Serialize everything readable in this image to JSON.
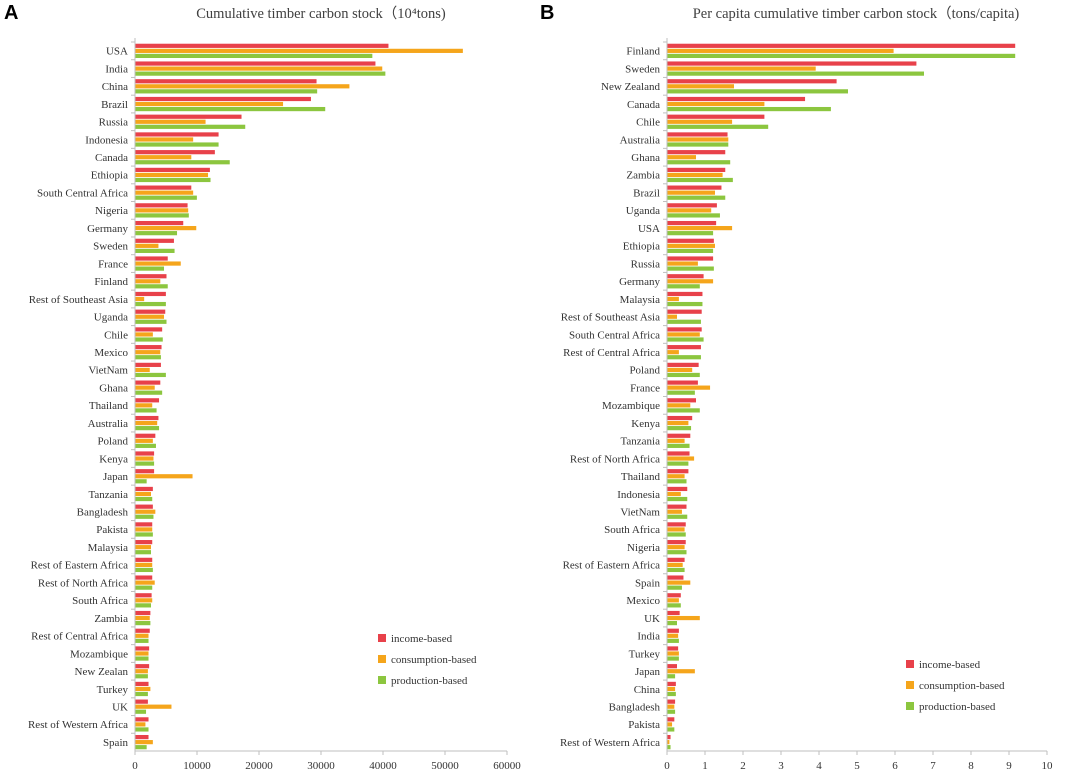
{
  "colors": {
    "income": "#E8414A",
    "consumption": "#F5A51B",
    "production": "#8CC63F",
    "axis": "#bfbfbf"
  },
  "chart_data": [
    {
      "type": "bar",
      "orientation": "horizontal",
      "panel": "A",
      "title": "Cumulative timber carbon stock（10⁴tons)",
      "xlim": [
        0,
        60000
      ],
      "xticks": [
        0,
        10000,
        20000,
        30000,
        40000,
        50000,
        60000
      ],
      "legend": [
        "income-based",
        "consumption-based",
        "production-based"
      ],
      "legend_position": "bottom-right",
      "categories": [
        "USA",
        "India",
        "China",
        "Brazil",
        "Russia",
        "Indonesia",
        "Canada",
        "Ethiopia",
        "South Central Africa",
        "Nigeria",
        "Germany",
        "Sweden",
        "France",
        "Finland",
        "Rest of Southeast Asia",
        "Uganda",
        "Chile",
        "Mexico",
        "VietNam",
        "Ghana",
        "Thailand",
        "Australia",
        "Poland",
        "Kenya",
        "Japan",
        "Tanzania",
        "Bangladesh",
        "Pakista",
        "Malaysia",
        "Rest of Eastern Africa",
        "Rest of North Africa",
        "South Africa",
        "Zambia",
        "Rest of Central Africa",
        "Mozambique",
        "New Zealan",
        "Turkey",
        "UK",
        "Rest of Western Africa",
        "Spain"
      ],
      "series": [
        {
          "name": "income-based",
          "values": [
            40800,
            38700,
            29200,
            28300,
            17100,
            13400,
            12800,
            12000,
            9000,
            8400,
            7700,
            6200,
            5200,
            5000,
            4900,
            4800,
            4300,
            4200,
            4100,
            4000,
            3800,
            3700,
            3200,
            3000,
            3000,
            2800,
            2800,
            2700,
            2700,
            2700,
            2700,
            2600,
            2400,
            2300,
            2200,
            2200,
            2100,
            2000,
            2100,
            2100
          ]
        },
        {
          "name": "consumption-based",
          "values": [
            52800,
            39800,
            34500,
            23800,
            11300,
            9300,
            9000,
            11700,
            9300,
            8500,
            9800,
            3700,
            7300,
            4000,
            1400,
            4600,
            2800,
            4000,
            2300,
            3100,
            2700,
            3500,
            2800,
            2900,
            9200,
            2500,
            3200,
            2700,
            2500,
            2700,
            3100,
            2700,
            2300,
            2100,
            2100,
            2000,
            2400,
            5800,
            1600,
            2800
          ]
        },
        {
          "name": "production-based",
          "values": [
            38200,
            40300,
            29300,
            30600,
            17700,
            13400,
            15200,
            12100,
            9900,
            8600,
            6700,
            6300,
            4600,
            5200,
            4900,
            5000,
            4400,
            4100,
            4900,
            4300,
            3400,
            3800,
            3300,
            3000,
            1800,
            2700,
            2900,
            2800,
            2500,
            2800,
            2700,
            2500,
            2400,
            2100,
            2100,
            2000,
            2000,
            1700,
            2100,
            1800
          ]
        }
      ]
    },
    {
      "type": "bar",
      "orientation": "horizontal",
      "panel": "B",
      "title": "Per capita cumulative timber carbon stock（tons/capita)",
      "xlim": [
        0,
        10
      ],
      "xticks": [
        0,
        1,
        2,
        3,
        4,
        5,
        6,
        7,
        8,
        9,
        10
      ],
      "legend": [
        "income-based",
        "consumption-based",
        "production-based"
      ],
      "legend_position": "bottom-right",
      "categories": [
        "Finland",
        "Sweden",
        "New Zealand",
        "Canada",
        "Chile",
        "Australia",
        "Ghana",
        "Zambia",
        "Brazil",
        "Uganda",
        "USA",
        "Ethiopia",
        "Russia",
        "Germany",
        "Malaysia",
        "Rest of Southeast Asia",
        "South Central Africa",
        "Rest of Central Africa",
        "Poland",
        "France",
        "Mozambique",
        "Kenya",
        "Tanzania",
        "Rest of North Africa",
        "Thailand",
        "Indonesia",
        "VietNam",
        "South Africa",
        "Nigeria",
        "Rest of Eastern Africa",
        "Spain",
        "Mexico",
        "UK",
        "India",
        "Turkey",
        "Japan",
        "China",
        "Bangladesh",
        "Pakista",
        "Rest of Western Africa"
      ],
      "series": [
        {
          "name": "income-based",
          "values": [
            9.15,
            6.55,
            4.45,
            3.62,
            2.55,
            1.58,
            1.52,
            1.52,
            1.42,
            1.3,
            1.28,
            1.22,
            1.2,
            0.95,
            0.92,
            0.9,
            0.9,
            0.88,
            0.82,
            0.8,
            0.75,
            0.65,
            0.6,
            0.58,
            0.55,
            0.52,
            0.5,
            0.48,
            0.48,
            0.45,
            0.42,
            0.35,
            0.32,
            0.3,
            0.28,
            0.25,
            0.22,
            0.2,
            0.18,
            0.08
          ]
        },
        {
          "name": "consumption-based",
          "values": [
            5.95,
            3.9,
            1.75,
            2.55,
            1.7,
            1.6,
            0.75,
            1.45,
            1.25,
            1.15,
            1.7,
            1.25,
            0.8,
            1.2,
            0.3,
            0.25,
            0.85,
            0.3,
            0.65,
            1.12,
            0.6,
            0.55,
            0.45,
            0.7,
            0.45,
            0.35,
            0.38,
            0.45,
            0.45,
            0.4,
            0.6,
            0.3,
            0.85,
            0.28,
            0.3,
            0.72,
            0.2,
            0.18,
            0.12,
            0.05
          ]
        },
        {
          "name": "production-based",
          "values": [
            9.15,
            6.75,
            4.75,
            4.3,
            2.65,
            1.6,
            1.65,
            1.72,
            1.52,
            1.38,
            1.2,
            1.2,
            1.22,
            0.85,
            0.92,
            0.88,
            0.95,
            0.88,
            0.85,
            0.72,
            0.85,
            0.62,
            0.58,
            0.55,
            0.5,
            0.52,
            0.52,
            0.48,
            0.5,
            0.45,
            0.38,
            0.35,
            0.25,
            0.3,
            0.3,
            0.2,
            0.22,
            0.2,
            0.18,
            0.08
          ]
        }
      ]
    }
  ]
}
